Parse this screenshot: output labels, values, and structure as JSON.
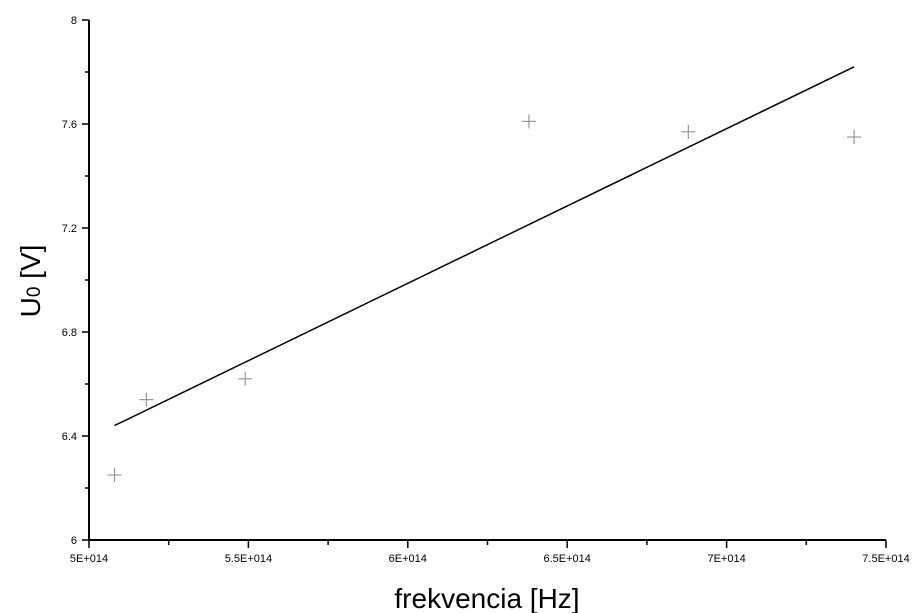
{
  "chart_data": {
    "type": "scatter",
    "xlabel": "frekvencia [Hz]",
    "ylabel_main": "U",
    "ylabel_sub": "0",
    "ylabel_unit": " [V]",
    "xlim": [
      500000000000000.0,
      750000000000000.0
    ],
    "ylim": [
      6,
      8
    ],
    "x_ticks": [
      500000000000000.0,
      550000000000000.0,
      600000000000000.0,
      650000000000000.0,
      700000000000000.0,
      750000000000000.0
    ],
    "x_tick_labels": [
      "5E+014",
      "5.5E+014",
      "6E+014",
      "6.5E+014",
      "7E+014",
      "7.5E+014"
    ],
    "y_ticks": [
      6,
      6.4,
      6.8,
      7.2,
      7.6,
      8
    ],
    "y_tick_labels": [
      "6",
      "6.4",
      "6.8",
      "7.2",
      "7.6",
      "8"
    ],
    "grid": false,
    "series": [
      {
        "marker": "plus",
        "points": [
          {
            "x": 508000000000000.0,
            "y": 6.25
          },
          {
            "x": 518000000000000.0,
            "y": 6.54
          },
          {
            "x": 549000000000000.0,
            "y": 6.62
          },
          {
            "x": 638000000000000.0,
            "y": 7.61
          },
          {
            "x": 688000000000000.0,
            "y": 7.57
          },
          {
            "x": 740000000000000.0,
            "y": 7.55
          }
        ]
      }
    ],
    "fit_line": {
      "x": [
        508000000000000.0,
        740000000000000.0
      ],
      "y": [
        6.44,
        7.82
      ]
    },
    "colors": {
      "axis": "#000000",
      "marker": "#999999",
      "line": "#000000"
    }
  }
}
